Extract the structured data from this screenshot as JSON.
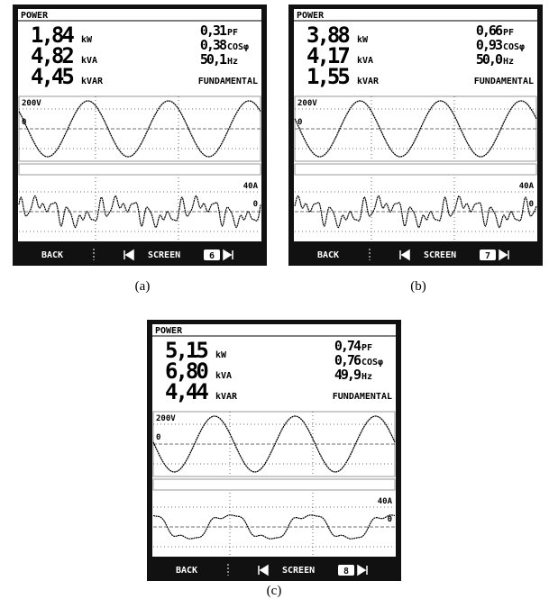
{
  "panels": [
    {
      "header": "POWER",
      "readings": [
        {
          "value": "1,84",
          "unit": "kW"
        },
        {
          "value": "4,82",
          "unit": "kVA"
        },
        {
          "value": "4,45",
          "unit": "kVAR"
        }
      ],
      "factors": [
        {
          "value": "0,31",
          "unit": "PF"
        },
        {
          "value": "0,38",
          "unit": "COSφ"
        },
        {
          "value": "50,1",
          "unit": "Hz"
        }
      ],
      "mode": "FUNDAMENTAL",
      "voltage_scale": "200V",
      "voltage_zero": "0",
      "current_scale": "40A",
      "current_zero": "0",
      "footer": {
        "back": "BACK",
        "screen": "SCREEN",
        "page": "6"
      },
      "caption": "(a)"
    },
    {
      "header": "POWER",
      "readings": [
        {
          "value": "3,88",
          "unit": "kW"
        },
        {
          "value": "4,17",
          "unit": "kVA"
        },
        {
          "value": "1,55",
          "unit": "kVAR"
        }
      ],
      "factors": [
        {
          "value": "0,66",
          "unit": "PF"
        },
        {
          "value": "0,93",
          "unit": "COSφ"
        },
        {
          "value": "50,0",
          "unit": "Hz"
        }
      ],
      "mode": "FUNDAMENTAL",
      "voltage_scale": "200V",
      "voltage_zero": "0",
      "current_scale": "40A",
      "current_zero": "0",
      "footer": {
        "back": "BACK",
        "screen": "SCREEN",
        "page": "7"
      },
      "caption": "(b)"
    },
    {
      "header": "POWER",
      "readings": [
        {
          "value": "5,15",
          "unit": "kW"
        },
        {
          "value": "6,80",
          "unit": "kVA"
        },
        {
          "value": "4,44",
          "unit": "kVAR"
        }
      ],
      "factors": [
        {
          "value": "0,74",
          "unit": "PF"
        },
        {
          "value": "0,76",
          "unit": "COSφ"
        },
        {
          "value": "49,9",
          "unit": "Hz"
        }
      ],
      "mode": "FUNDAMENTAL",
      "voltage_scale": "200V",
      "voltage_zero": "0",
      "current_scale": "40A",
      "current_zero": "0",
      "footer": {
        "back": "BACK",
        "screen": "SCREEN",
        "page": "8"
      },
      "caption": "(c)"
    }
  ]
}
